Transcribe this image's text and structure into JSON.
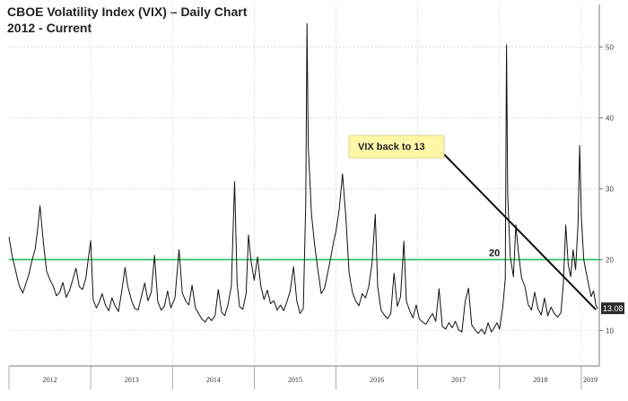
{
  "chart_data": {
    "type": "line",
    "title": "CBOE Volatility Index (VIX) – Daily Chart",
    "subtitle": "2012 - Current",
    "xlabel": "",
    "ylabel": "",
    "x_range": [
      2012.0,
      2019.22
    ],
    "ylim": [
      5,
      56
    ],
    "y_ticks": [
      10,
      20,
      30,
      40,
      50
    ],
    "x_tick_labels": [
      "2012",
      "2013",
      "2014",
      "2015",
      "2016",
      "2017",
      "2018",
      "2019"
    ],
    "grid": true,
    "series": [
      {
        "color": "#111111",
        "points": [
          [
            2012.0,
            23.2
          ],
          [
            2012.04,
            20.5
          ],
          [
            2012.07,
            19.0
          ],
          [
            2012.1,
            17.5
          ],
          [
            2012.13,
            16.2
          ],
          [
            2012.17,
            15.3
          ],
          [
            2012.2,
            16.4
          ],
          [
            2012.24,
            17.8
          ],
          [
            2012.28,
            19.8
          ],
          [
            2012.32,
            21.5
          ],
          [
            2012.35,
            24.2
          ],
          [
            2012.38,
            27.6
          ],
          [
            2012.42,
            22.5
          ],
          [
            2012.46,
            18.4
          ],
          [
            2012.5,
            17.2
          ],
          [
            2012.54,
            16.3
          ],
          [
            2012.58,
            14.9
          ],
          [
            2012.62,
            15.4
          ],
          [
            2012.66,
            16.8
          ],
          [
            2012.7,
            14.7
          ],
          [
            2012.74,
            15.6
          ],
          [
            2012.78,
            17.2
          ],
          [
            2012.82,
            18.8
          ],
          [
            2012.86,
            16.2
          ],
          [
            2012.9,
            15.8
          ],
          [
            2012.94,
            17.4
          ],
          [
            2012.97,
            20.1
          ],
          [
            2013.0,
            22.7
          ],
          [
            2013.03,
            14.3
          ],
          [
            2013.07,
            13.2
          ],
          [
            2013.1,
            13.9
          ],
          [
            2013.14,
            15.2
          ],
          [
            2013.18,
            13.6
          ],
          [
            2013.22,
            12.8
          ],
          [
            2013.26,
            14.6
          ],
          [
            2013.3,
            13.4
          ],
          [
            2013.34,
            12.7
          ],
          [
            2013.38,
            15.6
          ],
          [
            2013.42,
            18.9
          ],
          [
            2013.45,
            16.4
          ],
          [
            2013.5,
            14.2
          ],
          [
            2013.54,
            13.1
          ],
          [
            2013.58,
            12.9
          ],
          [
            2013.62,
            14.8
          ],
          [
            2013.66,
            16.7
          ],
          [
            2013.7,
            14.2
          ],
          [
            2013.74,
            15.4
          ],
          [
            2013.78,
            20.6
          ],
          [
            2013.82,
            14.1
          ],
          [
            2013.86,
            12.9
          ],
          [
            2013.9,
            13.4
          ],
          [
            2013.94,
            15.6
          ],
          [
            2013.98,
            13.2
          ],
          [
            2014.03,
            14.6
          ],
          [
            2014.08,
            21.4
          ],
          [
            2014.12,
            15.3
          ],
          [
            2014.16,
            14.2
          ],
          [
            2014.2,
            13.6
          ],
          [
            2014.24,
            16.4
          ],
          [
            2014.28,
            13.2
          ],
          [
            2014.32,
            12.4
          ],
          [
            2014.36,
            11.6
          ],
          [
            2014.4,
            11.2
          ],
          [
            2014.44,
            11.9
          ],
          [
            2014.48,
            11.4
          ],
          [
            2014.52,
            12.1
          ],
          [
            2014.56,
            15.8
          ],
          [
            2014.6,
            12.6
          ],
          [
            2014.64,
            12.1
          ],
          [
            2014.68,
            13.7
          ],
          [
            2014.72,
            16.3
          ],
          [
            2014.76,
            31.0
          ],
          [
            2014.79,
            16.6
          ],
          [
            2014.82,
            13.4
          ],
          [
            2014.86,
            13.0
          ],
          [
            2014.9,
            15.2
          ],
          [
            2014.93,
            23.5
          ],
          [
            2014.96,
            19.8
          ],
          [
            2015.0,
            17.1
          ],
          [
            2015.04,
            20.4
          ],
          [
            2015.08,
            16.3
          ],
          [
            2015.12,
            14.4
          ],
          [
            2015.16,
            15.7
          ],
          [
            2015.2,
            13.8
          ],
          [
            2015.24,
            14.2
          ],
          [
            2015.28,
            12.9
          ],
          [
            2015.32,
            13.6
          ],
          [
            2015.36,
            12.8
          ],
          [
            2015.4,
            14.1
          ],
          [
            2015.44,
            15.6
          ],
          [
            2015.48,
            19.0
          ],
          [
            2015.52,
            14.2
          ],
          [
            2015.56,
            12.4
          ],
          [
            2015.6,
            13.1
          ],
          [
            2015.63,
            28.0
          ],
          [
            2015.645,
            53.3
          ],
          [
            2015.66,
            36.0
          ],
          [
            2015.7,
            26.4
          ],
          [
            2015.74,
            22.0
          ],
          [
            2015.78,
            18.4
          ],
          [
            2015.82,
            15.2
          ],
          [
            2015.86,
            16.0
          ],
          [
            2015.9,
            18.2
          ],
          [
            2015.94,
            20.6
          ],
          [
            2015.97,
            22.5
          ],
          [
            2016.0,
            24.0
          ],
          [
            2016.04,
            27.2
          ],
          [
            2016.08,
            32.1
          ],
          [
            2016.12,
            26.0
          ],
          [
            2016.16,
            18.2
          ],
          [
            2016.2,
            15.4
          ],
          [
            2016.24,
            14.2
          ],
          [
            2016.28,
            13.5
          ],
          [
            2016.32,
            15.2
          ],
          [
            2016.36,
            14.6
          ],
          [
            2016.4,
            16.2
          ],
          [
            2016.44,
            19.4
          ],
          [
            2016.48,
            26.4
          ],
          [
            2016.51,
            16.2
          ],
          [
            2016.55,
            12.9
          ],
          [
            2016.59,
            12.2
          ],
          [
            2016.63,
            11.7
          ],
          [
            2016.67,
            12.4
          ],
          [
            2016.71,
            18.1
          ],
          [
            2016.75,
            13.4
          ],
          [
            2016.79,
            14.8
          ],
          [
            2016.83,
            22.6
          ],
          [
            2016.86,
            14.2
          ],
          [
            2016.9,
            12.8
          ],
          [
            2016.94,
            11.8
          ],
          [
            2016.98,
            13.6
          ],
          [
            2017.02,
            11.6
          ],
          [
            2017.06,
            11.2
          ],
          [
            2017.1,
            10.9
          ],
          [
            2017.14,
            11.7
          ],
          [
            2017.18,
            12.4
          ],
          [
            2017.22,
            11.3
          ],
          [
            2017.26,
            15.9
          ],
          [
            2017.3,
            10.6
          ],
          [
            2017.34,
            10.2
          ],
          [
            2017.38,
            11.1
          ],
          [
            2017.42,
            10.4
          ],
          [
            2017.46,
            11.3
          ],
          [
            2017.5,
            10.1
          ],
          [
            2017.54,
            9.8
          ],
          [
            2017.58,
            14.1
          ],
          [
            2017.62,
            16.0
          ],
          [
            2017.66,
            10.8
          ],
          [
            2017.7,
            10.1
          ],
          [
            2017.74,
            9.6
          ],
          [
            2017.78,
            10.2
          ],
          [
            2017.82,
            9.5
          ],
          [
            2017.86,
            11.1
          ],
          [
            2017.9,
            9.8
          ],
          [
            2017.94,
            10.5
          ],
          [
            2017.97,
            11.1
          ],
          [
            2018.0,
            10.2
          ],
          [
            2018.04,
            13.4
          ],
          [
            2018.07,
            17.3
          ],
          [
            2018.085,
            50.3
          ],
          [
            2018.1,
            29.2
          ],
          [
            2018.13,
            20.5
          ],
          [
            2018.17,
            17.6
          ],
          [
            2018.2,
            24.9
          ],
          [
            2018.23,
            21.1
          ],
          [
            2018.27,
            17.4
          ],
          [
            2018.31,
            16.2
          ],
          [
            2018.35,
            13.7
          ],
          [
            2018.39,
            12.9
          ],
          [
            2018.43,
            15.4
          ],
          [
            2018.47,
            13.1
          ],
          [
            2018.51,
            12.2
          ],
          [
            2018.55,
            14.6
          ],
          [
            2018.59,
            12.1
          ],
          [
            2018.63,
            13.3
          ],
          [
            2018.67,
            12.4
          ],
          [
            2018.71,
            11.9
          ],
          [
            2018.75,
            12.5
          ],
          [
            2018.78,
            16.5
          ],
          [
            2018.81,
            24.9
          ],
          [
            2018.84,
            19.3
          ],
          [
            2018.87,
            17.6
          ],
          [
            2018.9,
            21.4
          ],
          [
            2018.93,
            18.6
          ],
          [
            2018.96,
            25.0
          ],
          [
            2018.98,
            36.1
          ],
          [
            2019.0,
            26.0
          ],
          [
            2019.03,
            20.0
          ],
          [
            2019.06,
            18.2
          ],
          [
            2019.09,
            16.4
          ],
          [
            2019.12,
            14.8
          ],
          [
            2019.15,
            15.6
          ],
          [
            2019.18,
            13.5
          ],
          [
            2019.2,
            13.08
          ]
        ]
      }
    ],
    "reference_line": {
      "value": 20,
      "label": "20",
      "color": "#22c15a"
    },
    "annotation": {
      "text": "VIX back to 13",
      "box_color": "#fff7a8"
    },
    "last_value_label": "13.08",
    "background": "#ffffff",
    "grid_color": "#c8c8c8"
  }
}
